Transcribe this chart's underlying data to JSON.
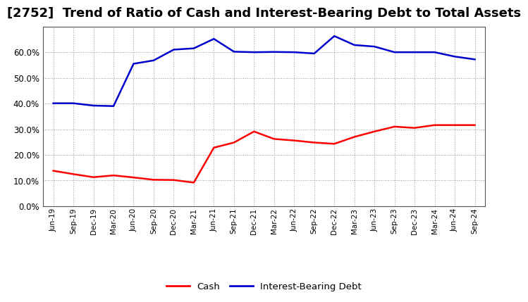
{
  "title": "[2752]  Trend of Ratio of Cash and Interest-Bearing Debt to Total Assets",
  "x_labels": [
    "Jun-19",
    "Sep-19",
    "Dec-19",
    "Mar-20",
    "Jun-20",
    "Sep-20",
    "Dec-20",
    "Mar-21",
    "Jun-21",
    "Sep-21",
    "Dec-21",
    "Mar-22",
    "Jun-22",
    "Sep-22",
    "Dec-22",
    "Mar-23",
    "Jun-23",
    "Sep-23",
    "Dec-23",
    "Mar-24",
    "Jun-24",
    "Sep-24"
  ],
  "cash": [
    0.138,
    0.125,
    0.113,
    0.12,
    0.112,
    0.103,
    0.102,
    0.092,
    0.228,
    0.248,
    0.291,
    0.262,
    0.256,
    0.248,
    0.243,
    0.27,
    0.291,
    0.31,
    0.305,
    0.316,
    0.316,
    0.316
  ],
  "debt": [
    0.401,
    0.401,
    0.392,
    0.39,
    0.555,
    0.568,
    0.61,
    0.615,
    0.652,
    0.602,
    0.6,
    0.601,
    0.6,
    0.595,
    0.663,
    0.628,
    0.622,
    0.6,
    0.6,
    0.6,
    0.583,
    0.572
  ],
  "cash_color": "#ff0000",
  "debt_color": "#0000cc",
  "background_color": "#ffffff",
  "plot_bg_color": "#ffffff",
  "grid_color": "#999999",
  "ylim": [
    0.0,
    0.7
  ],
  "yticks": [
    0.0,
    0.1,
    0.2,
    0.3,
    0.4,
    0.5,
    0.6
  ],
  "title_fontsize": 13,
  "legend_cash": "Cash",
  "legend_debt": "Interest-Bearing Debt",
  "line_width": 1.8
}
